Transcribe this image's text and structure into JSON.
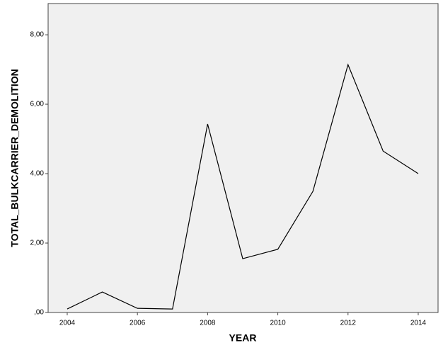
{
  "chart_data": {
    "type": "line",
    "x": [
      2004,
      2005,
      2006,
      2007,
      2008,
      2009,
      2010,
      2011,
      2012,
      2013,
      2014
    ],
    "series": [
      {
        "color": "#000000",
        "values": [
          0.1,
          0.59,
          0.12,
          0.1,
          5.43,
          1.55,
          1.82,
          3.49,
          7.14,
          4.65,
          4.0
        ]
      }
    ],
    "xlim": [
      2003.456,
      2014.565
    ],
    "xticks": [
      2004,
      2006,
      2008,
      2010,
      2012,
      2014
    ],
    "ylim": [
      0,
      8.9
    ],
    "yticks": [
      {
        "value": 0,
        "label": ",00"
      },
      {
        "value": 2,
        "label": "2,00"
      },
      {
        "value": 4,
        "label": "4,00"
      },
      {
        "value": 6,
        "label": "6,00"
      },
      {
        "value": 8,
        "label": "8,00"
      }
    ],
    "x_label": "YEAR",
    "y_label": "TOTAL_BULKCARRIER_DEMOLITION"
  }
}
